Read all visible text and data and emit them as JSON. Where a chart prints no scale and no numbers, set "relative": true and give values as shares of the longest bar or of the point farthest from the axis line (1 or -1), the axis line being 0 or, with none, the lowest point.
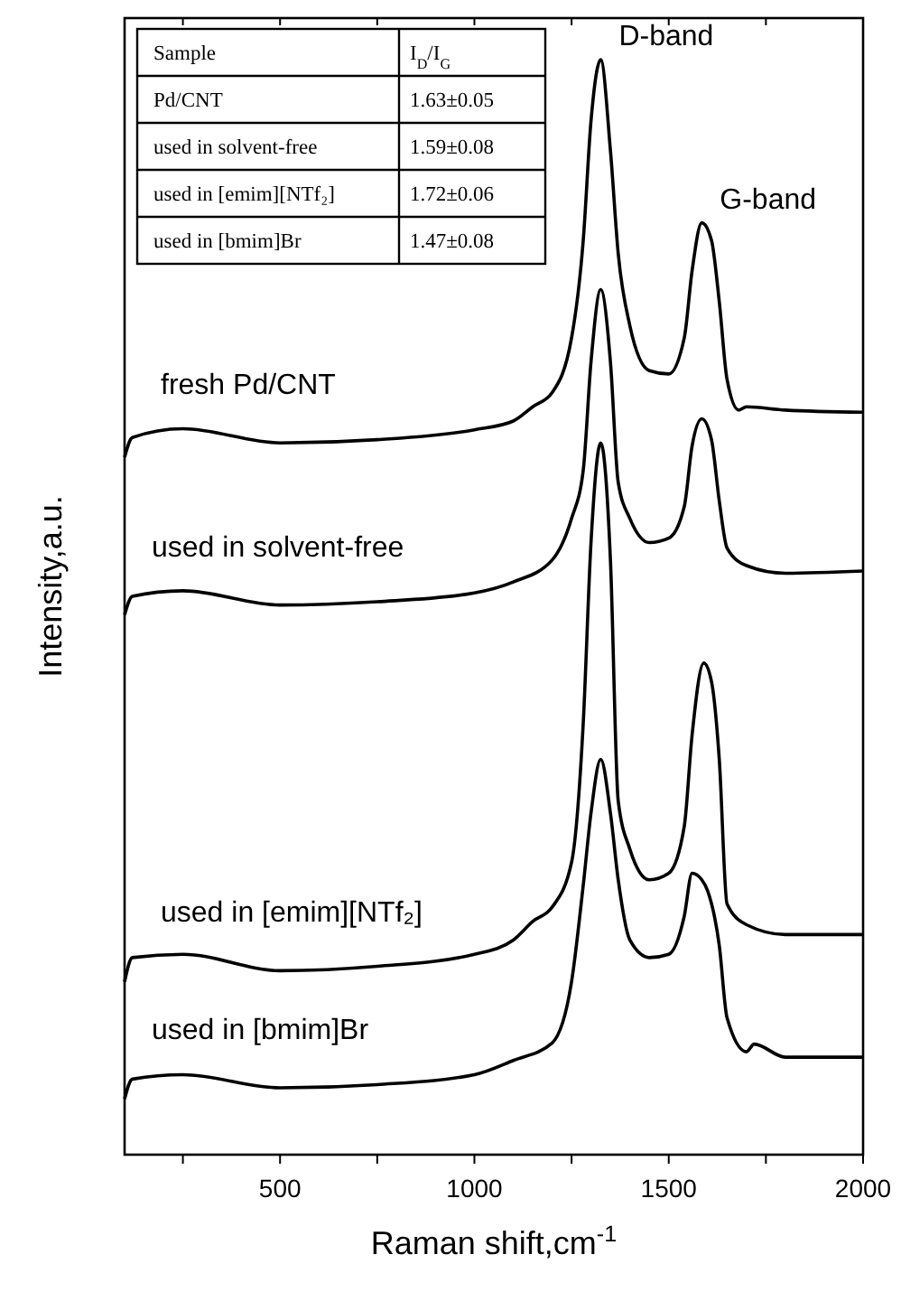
{
  "chart_data": {
    "type": "line",
    "relative": true,
    "xlabel": "Raman shift,cm$^{-1}$",
    "ylabel": "Intensity,a.u.",
    "xlim": [
      100,
      2000
    ],
    "xticks": [
      {
        "value": 250,
        "label": null
      },
      500,
      {
        "value": 750,
        "label": null
      },
      1000,
      {
        "value": 1250,
        "label": null
      },
      1500,
      {
        "value": 1750,
        "label": null
      },
      2000
    ],
    "tick_labels": "x",
    "grid": false,
    "legend": false,
    "marker": "none",
    "line_style": "solid",
    "series": [
      {
        "name": "fresh Pd/CNT",
        "color": "#000000",
        "x": [
          100,
          120,
          250,
          500,
          750,
          1000,
          1100,
          1150,
          1200,
          1250,
          1280,
          1300,
          1325,
          1350,
          1370,
          1400,
          1450,
          1500,
          1540,
          1560,
          1585,
          1610,
          1630,
          1650,
          1680,
          1700,
          1800,
          2000
        ],
        "values": [
          0.637,
          0.655,
          0.663,
          0.65,
          0.653,
          0.662,
          0.67,
          0.683,
          0.696,
          0.746,
          0.835,
          0.944,
          1.0,
          0.917,
          0.823,
          0.757,
          0.716,
          0.713,
          0.746,
          0.807,
          0.851,
          0.835,
          0.779,
          0.708,
          0.68,
          0.683,
          0.68,
          0.678
        ]
      },
      {
        "name": "used in solvent-free",
        "color": "#000000",
        "x": [
          100,
          120,
          250,
          500,
          750,
          1000,
          1100,
          1200,
          1250,
          1280,
          1300,
          1325,
          1350,
          1370,
          1400,
          1450,
          1500,
          1540,
          1560,
          1585,
          1610,
          1630,
          1650,
          1700,
          1800,
          2000
        ],
        "values": [
          0.493,
          0.51,
          0.515,
          0.502,
          0.505,
          0.513,
          0.523,
          0.543,
          0.581,
          0.625,
          0.724,
          0.79,
          0.724,
          0.614,
          0.581,
          0.559,
          0.563,
          0.592,
          0.647,
          0.672,
          0.653,
          0.597,
          0.554,
          0.538,
          0.531,
          0.533
        ]
      },
      {
        "name": "used in [emim][NTf₂]",
        "color": "#000000",
        "x": [
          100,
          120,
          250,
          500,
          750,
          1000,
          1100,
          1150,
          1200,
          1250,
          1280,
          1300,
          1325,
          1350,
          1370,
          1400,
          1450,
          1500,
          1540,
          1560,
          1590,
          1610,
          1630,
          1650,
          1700,
          1800,
          2000
        ],
        "values": [
          0.158,
          0.18,
          0.183,
          0.168,
          0.172,
          0.183,
          0.196,
          0.213,
          0.226,
          0.267,
          0.394,
          0.559,
          0.65,
          0.543,
          0.323,
          0.279,
          0.251,
          0.257,
          0.3,
          0.383,
          0.449,
          0.432,
          0.361,
          0.229,
          0.21,
          0.201,
          0.201
        ]
      },
      {
        "name": "used in [bmim]Br",
        "color": "#000000",
        "x": [
          100,
          120,
          250,
          500,
          750,
          1000,
          1100,
          1200,
          1250,
          1280,
          1300,
          1325,
          1350,
          1370,
          1400,
          1450,
          1500,
          1540,
          1560,
          1585,
          1600,
          1630,
          1650,
          1700,
          1720,
          1800,
          2000
        ],
        "values": [
          0.051,
          0.069,
          0.073,
          0.061,
          0.064,
          0.073,
          0.086,
          0.102,
          0.158,
          0.246,
          0.312,
          0.361,
          0.312,
          0.251,
          0.196,
          0.18,
          0.183,
          0.218,
          0.257,
          0.251,
          0.241,
          0.191,
          0.125,
          0.094,
          0.101,
          0.089,
          0.089
        ]
      }
    ],
    "annotations": [
      {
        "text": "D-band",
        "x": 1325,
        "y": 1.0
      },
      {
        "text": "G-band",
        "x": 1585,
        "y": 0.851
      },
      "Sample",
      "I$_{D}$/I$_{G}$",
      "Pd/CNT",
      "1.63±0.05",
      "used in solvent-free",
      "1.59±0.08",
      "used in [emim][NTf₂]",
      "1.72±0.06",
      "used in [bmim]Br",
      "1.47±0.08"
    ]
  }
}
